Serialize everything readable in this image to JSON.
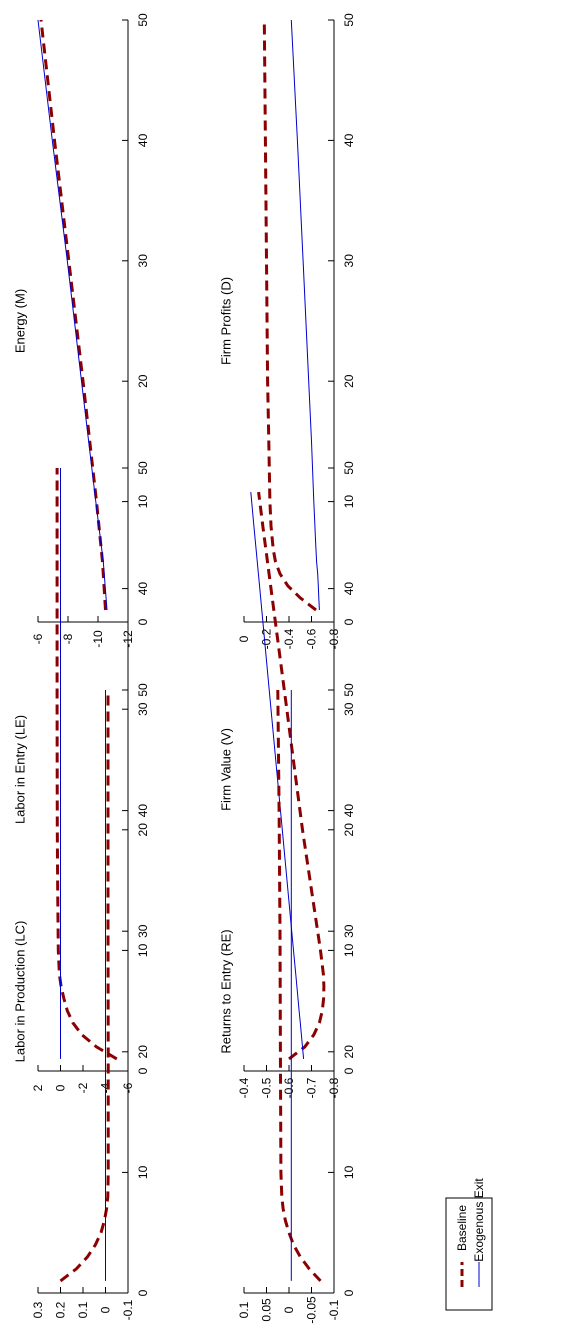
{
  "colors": {
    "baseline": "#8b0000",
    "exogenous": "#0000cc",
    "axis": "#000000"
  },
  "legend": {
    "items": [
      "Baseline",
      "Exogenous Exit"
    ],
    "placement": "bottom-left"
  },
  "chart_data": [
    {
      "type": "line",
      "title": "Energy (M)",
      "xlim": [
        0,
        50
      ],
      "ylim": [
        -12,
        -6
      ],
      "xticks": [
        0,
        10,
        20,
        30,
        40,
        50
      ],
      "yticks": [
        -6,
        -8,
        -10,
        -12
      ],
      "x": [
        1,
        5,
        10,
        20,
        30,
        40,
        50
      ],
      "series": [
        {
          "name": "Baseline",
          "values": [
            -10.5,
            -10.3,
            -9.9,
            -9.0,
            -8.05,
            -7.1,
            -6.2
          ]
        },
        {
          "name": "Exogenous Exit",
          "values": [
            -10.6,
            -10.35,
            -9.85,
            -8.9,
            -7.95,
            -6.95,
            -6.0
          ]
        }
      ]
    },
    {
      "type": "line",
      "title": "Labor in Entry (LE)",
      "xlim": [
        0,
        50
      ],
      "ylim": [
        -6,
        2
      ],
      "xticks": [
        0,
        10,
        20,
        30,
        40,
        50
      ],
      "yticks": [
        2,
        0,
        -2,
        -4,
        -6
      ],
      "x": [
        1,
        2,
        3,
        4,
        5,
        6,
        7,
        8,
        10,
        15,
        20,
        30,
        40,
        50
      ],
      "series": [
        {
          "name": "Baseline",
          "values": [
            -5.0,
            -3.2,
            -1.9,
            -1.1,
            -0.6,
            -0.3,
            -0.05,
            0.1,
            0.2,
            0.25,
            0.28,
            0.3,
            0.3,
            0.3
          ]
        },
        {
          "name": "Exogenous Exit",
          "values": [
            0,
            0,
            0,
            0,
            0,
            0,
            0,
            0,
            0,
            0,
            0,
            0,
            0,
            0
          ]
        }
      ]
    },
    {
      "type": "line",
      "title": "Labor in Production (LC)",
      "xlim": [
        0,
        50
      ],
      "ylim": [
        -0.1,
        0.3
      ],
      "xticks": [
        0,
        10,
        20,
        30,
        40,
        50
      ],
      "yticks": [
        0.3,
        0.2,
        0.1,
        0,
        -0.1
      ],
      "x": [
        1,
        2,
        3,
        4,
        5,
        6,
        7,
        8,
        10,
        20,
        30,
        40,
        50
      ],
      "series": [
        {
          "name": "Baseline",
          "values": [
            0.2,
            0.13,
            0.08,
            0.045,
            0.02,
            0.005,
            -0.005,
            -0.01,
            -0.012,
            -0.012,
            -0.011,
            -0.011,
            -0.011
          ]
        },
        {
          "name": "Exogenous Exit",
          "values": [
            0,
            0,
            0,
            0,
            0,
            0,
            0,
            0,
            0,
            0,
            0,
            0,
            0
          ]
        }
      ]
    },
    {
      "type": "line",
      "title": "Firm Profits (D)",
      "xlim": [
        0,
        50
      ],
      "ylim": [
        -0.8,
        0
      ],
      "xticks": [
        0,
        10,
        20,
        30,
        40,
        50
      ],
      "yticks": [
        0,
        -0.2,
        -0.4,
        -0.6,
        -0.8
      ],
      "x": [
        1,
        2,
        3,
        4,
        5,
        6,
        7,
        8,
        10,
        15,
        20,
        30,
        40,
        50
      ],
      "series": [
        {
          "name": "Baseline",
          "values": [
            -0.64,
            -0.5,
            -0.39,
            -0.32,
            -0.28,
            -0.26,
            -0.25,
            -0.24,
            -0.23,
            -0.22,
            -0.21,
            -0.2,
            -0.19,
            -0.18
          ]
        },
        {
          "name": "Exogenous Exit",
          "values": [
            -0.67,
            -0.665,
            -0.66,
            -0.655,
            -0.645,
            -0.64,
            -0.635,
            -0.63,
            -0.62,
            -0.6,
            -0.575,
            -0.525,
            -0.475,
            -0.42
          ]
        }
      ]
    },
    {
      "type": "line",
      "title": "Firm Value (V)",
      "xlim": [
        0,
        50
      ],
      "ylim": [
        -0.8,
        -0.4
      ],
      "xticks": [
        0,
        10,
        20,
        30,
        40,
        50
      ],
      "yticks": [
        -0.4,
        -0.5,
        -0.6,
        -0.7,
        -0.8
      ],
      "x": [
        1,
        2,
        3,
        4,
        5,
        6,
        7,
        8,
        10,
        15,
        20,
        25,
        30,
        35,
        40,
        45,
        48
      ],
      "series": [
        {
          "name": "Baseline",
          "values": [
            -0.6,
            -0.67,
            -0.71,
            -0.735,
            -0.748,
            -0.754,
            -0.755,
            -0.753,
            -0.74,
            -0.7,
            -0.66,
            -0.625,
            -0.59,
            -0.555,
            -0.52,
            -0.485,
            -0.465
          ]
        },
        {
          "name": "Exogenous Exit",
          "values": [
            -0.665,
            -0.66,
            -0.655,
            -0.65,
            -0.645,
            -0.64,
            -0.635,
            -0.63,
            -0.62,
            -0.595,
            -0.57,
            -0.545,
            -0.52,
            -0.495,
            -0.47,
            -0.445,
            -0.43
          ]
        }
      ]
    },
    {
      "type": "line",
      "title": "Returns to Entry (RE)",
      "xlim": [
        0,
        50
      ],
      "ylim": [
        -0.1,
        0.1
      ],
      "xticks": [
        0,
        10,
        20,
        30,
        40,
        50
      ],
      "yticks": [
        0.1,
        0.05,
        0,
        -0.05,
        -0.1
      ],
      "x": [
        1,
        2,
        3,
        4,
        5,
        6,
        7,
        8,
        10,
        20,
        30,
        40,
        50
      ],
      "series": [
        {
          "name": "Baseline",
          "values": [
            -0.07,
            -0.045,
            -0.025,
            -0.01,
            0.0,
            0.008,
            0.013,
            0.016,
            0.018,
            0.019,
            0.02,
            0.022,
            0.025
          ]
        },
        {
          "name": "Exogenous Exit",
          "values": [
            -0.005,
            -0.005,
            -0.005,
            -0.005,
            -0.005,
            -0.005,
            -0.005,
            -0.005,
            -0.005,
            -0.005,
            -0.005,
            -0.005,
            -0.005
          ]
        }
      ]
    }
  ]
}
